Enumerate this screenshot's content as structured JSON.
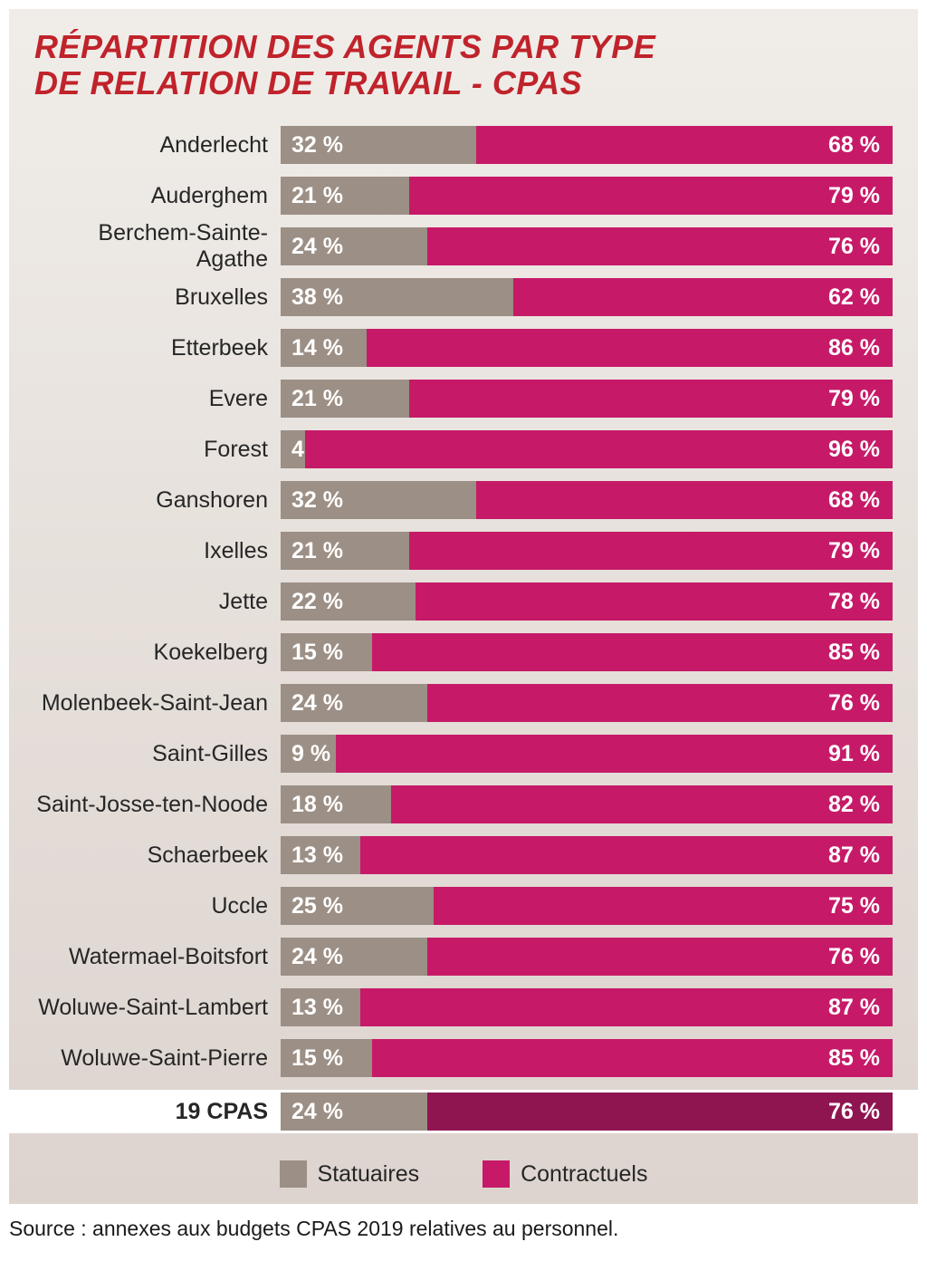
{
  "title_line1": "RÉPARTITION DES AGENTS PAR TYPE",
  "title_line2": "DE RELATION DE TRAVAIL - CPAS",
  "title_color": "#c0232b",
  "title_fontsize": 36,
  "chart": {
    "type": "stacked-bar-horizontal",
    "series": [
      {
        "key": "statutaires",
        "label": "Statuaires",
        "color": "#9c8f85"
      },
      {
        "key": "contractuels",
        "label": "Contractuels",
        "color": "#c61a68"
      }
    ],
    "total_contractuels_color": "#8f1551",
    "value_label_color": "#ffffff",
    "value_label_fontsize": 25,
    "category_label_fontsize": 25,
    "category_label_color": "#262626",
    "rows": [
      {
        "label": "Anderlecht",
        "statutaires": 32,
        "contractuels": 68
      },
      {
        "label": "Auderghem",
        "statutaires": 21,
        "contractuels": 79
      },
      {
        "label": "Berchem-Sainte-Agathe",
        "statutaires": 24,
        "contractuels": 76
      },
      {
        "label": "Bruxelles",
        "statutaires": 38,
        "contractuels": 62
      },
      {
        "label": "Etterbeek",
        "statutaires": 14,
        "contractuels": 86
      },
      {
        "label": "Evere",
        "statutaires": 21,
        "contractuels": 79
      },
      {
        "label": "Forest",
        "statutaires": 4,
        "contractuels": 96
      },
      {
        "label": "Ganshoren",
        "statutaires": 32,
        "contractuels": 68
      },
      {
        "label": "Ixelles",
        "statutaires": 21,
        "contractuels": 79
      },
      {
        "label": "Jette",
        "statutaires": 22,
        "contractuels": 78
      },
      {
        "label": "Koekelberg",
        "statutaires": 15,
        "contractuels": 85
      },
      {
        "label": "Molenbeek-Saint-Jean",
        "statutaires": 24,
        "contractuels": 76
      },
      {
        "label": "Saint-Gilles",
        "statutaires": 9,
        "contractuels": 91
      },
      {
        "label": "Saint-Josse-ten-Noode",
        "statutaires": 18,
        "contractuels": 82
      },
      {
        "label": "Schaerbeek",
        "statutaires": 13,
        "contractuels": 87
      },
      {
        "label": "Uccle",
        "statutaires": 25,
        "contractuels": 75
      },
      {
        "label": "Watermael-Boitsfort",
        "statutaires": 24,
        "contractuels": 76
      },
      {
        "label": "Woluwe-Saint-Lambert",
        "statutaires": 13,
        "contractuels": 87
      },
      {
        "label": "Woluwe-Saint-Pierre",
        "statutaires": 15,
        "contractuels": 85
      }
    ],
    "total_row": {
      "label": "19 CPAS",
      "statutaires": 24,
      "contractuels": 76
    },
    "background_gradient": [
      "#f0ede9",
      "#ddd4cf"
    ]
  },
  "source": "Source : annexes aux budgets CPAS 2019 relatives au personnel."
}
